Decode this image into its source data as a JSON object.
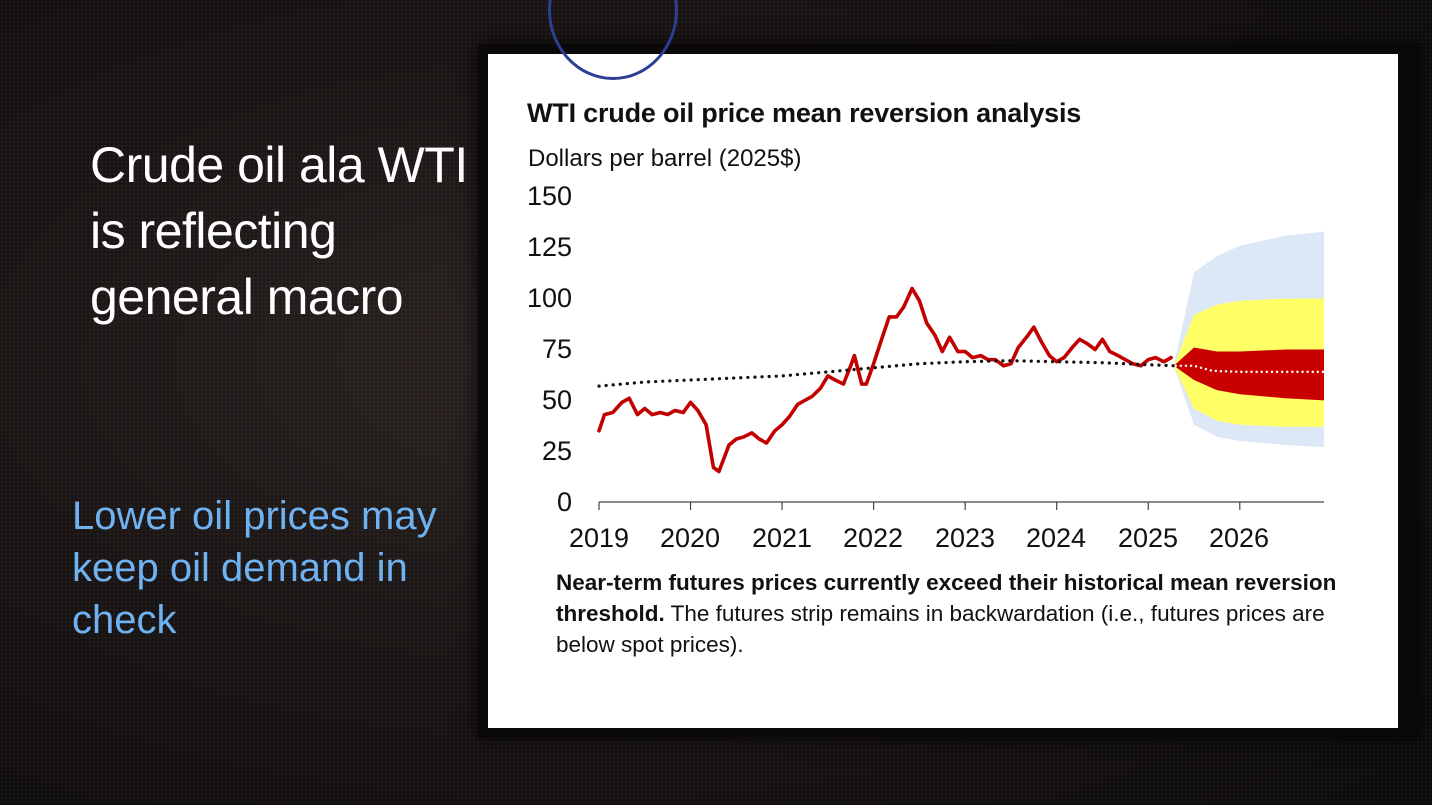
{
  "slide": {
    "headline": "Crude oil ala WTI is reflecting general macro",
    "subline": "Lower oil prices may keep oil demand in check"
  },
  "colors": {
    "price": "#c20000",
    "mean": "#111111",
    "band_outer": "#dce8f5",
    "band_mid": "#ffff66",
    "band_inner": "#c80000"
  },
  "chart_data": {
    "type": "line",
    "title": "WTI crude oil price mean reversion analysis",
    "ylabel": "Dollars per barrel (2025$)",
    "xlabel": "",
    "ylim": [
      0,
      150
    ],
    "yticks": [
      "0",
      "25",
      "50",
      "75",
      "100",
      "125",
      "150"
    ],
    "xticks": [
      "2019",
      "2020",
      "2021",
      "2022",
      "2023",
      "2024",
      "2025",
      "2026"
    ],
    "xlim": [
      2019.0,
      2026.92
    ],
    "series": [
      {
        "style": "solid-red",
        "points": [
          [
            2019.0,
            35
          ],
          [
            2019.06,
            43
          ],
          [
            2019.15,
            44
          ],
          [
            2019.25,
            49
          ],
          [
            2019.33,
            51
          ],
          [
            2019.42,
            43
          ],
          [
            2019.5,
            46
          ],
          [
            2019.58,
            43
          ],
          [
            2019.67,
            44
          ],
          [
            2019.75,
            43
          ],
          [
            2019.83,
            45
          ],
          [
            2019.92,
            44
          ],
          [
            2020.0,
            49
          ],
          [
            2020.08,
            45
          ],
          [
            2020.17,
            38
          ],
          [
            2020.25,
            17
          ],
          [
            2020.31,
            15
          ],
          [
            2020.42,
            28
          ],
          [
            2020.5,
            31
          ],
          [
            2020.58,
            32
          ],
          [
            2020.67,
            34
          ],
          [
            2020.75,
            31
          ],
          [
            2020.83,
            29
          ],
          [
            2020.92,
            35
          ],
          [
            2021.0,
            38
          ],
          [
            2021.08,
            42
          ],
          [
            2021.17,
            48
          ],
          [
            2021.25,
            50
          ],
          [
            2021.33,
            52
          ],
          [
            2021.42,
            56
          ],
          [
            2021.5,
            62
          ],
          [
            2021.58,
            60
          ],
          [
            2021.67,
            58
          ],
          [
            2021.75,
            67
          ],
          [
            2021.79,
            72
          ],
          [
            2021.87,
            58
          ],
          [
            2021.92,
            58
          ],
          [
            2022.0,
            68
          ],
          [
            2022.08,
            79
          ],
          [
            2022.17,
            91
          ],
          [
            2022.25,
            91
          ],
          [
            2022.33,
            96
          ],
          [
            2022.42,
            105
          ],
          [
            2022.5,
            99
          ],
          [
            2022.58,
            88
          ],
          [
            2022.67,
            82
          ],
          [
            2022.75,
            74
          ],
          [
            2022.83,
            81
          ],
          [
            2022.92,
            74
          ],
          [
            2023.0,
            74
          ],
          [
            2023.08,
            71
          ],
          [
            2023.17,
            72
          ],
          [
            2023.25,
            70
          ],
          [
            2023.33,
            70
          ],
          [
            2023.42,
            67
          ],
          [
            2023.5,
            68
          ],
          [
            2023.58,
            76
          ],
          [
            2023.67,
            81
          ],
          [
            2023.75,
            86
          ],
          [
            2023.83,
            79
          ],
          [
            2023.92,
            72
          ],
          [
            2024.0,
            69
          ],
          [
            2024.08,
            71
          ],
          [
            2024.17,
            76
          ],
          [
            2024.25,
            80
          ],
          [
            2024.33,
            78
          ],
          [
            2024.42,
            75
          ],
          [
            2024.5,
            80
          ],
          [
            2024.58,
            74
          ],
          [
            2024.67,
            72
          ],
          [
            2024.75,
            70
          ],
          [
            2024.83,
            68
          ],
          [
            2024.92,
            67
          ],
          [
            2025.0,
            70
          ],
          [
            2025.08,
            71
          ],
          [
            2025.17,
            69
          ],
          [
            2025.25,
            71
          ]
        ]
      },
      {
        "style": "dotted-black",
        "points": [
          [
            2019.0,
            57
          ],
          [
            2019.5,
            59
          ],
          [
            2020.0,
            60
          ],
          [
            2020.5,
            61
          ],
          [
            2021.0,
            62
          ],
          [
            2021.5,
            64
          ],
          [
            2022.0,
            66
          ],
          [
            2022.5,
            68
          ],
          [
            2023.0,
            69
          ],
          [
            2023.5,
            69.5
          ],
          [
            2024.0,
            69
          ],
          [
            2024.5,
            68.5
          ],
          [
            2025.0,
            67.5
          ],
          [
            2025.3,
            67
          ]
        ]
      },
      {
        "style": "dotted-white",
        "points": [
          [
            2025.3,
            67
          ],
          [
            2025.5,
            67
          ],
          [
            2025.7,
            64.5
          ],
          [
            2026.0,
            64
          ],
          [
            2026.5,
            64
          ],
          [
            2026.92,
            64
          ]
        ]
      }
    ],
    "bands": [
      {
        "name": "outer",
        "x": [
          2025.28,
          2025.5,
          2025.75,
          2026.0,
          2026.5,
          2026.92
        ],
        "upper": [
          67,
          113,
          121,
          126,
          131,
          133
        ],
        "lower": [
          67,
          38,
          32,
          30,
          28,
          27
        ]
      },
      {
        "name": "mid",
        "x": [
          2025.28,
          2025.5,
          2025.75,
          2026.0,
          2026.5,
          2026.92
        ],
        "upper": [
          67,
          92,
          97,
          99,
          100,
          100
        ],
        "lower": [
          67,
          46,
          40,
          38,
          37,
          37
        ]
      },
      {
        "name": "inner",
        "x": [
          2025.28,
          2025.5,
          2025.75,
          2026.0,
          2026.5,
          2026.92
        ],
        "upper": [
          67,
          76,
          74,
          74,
          75,
          75
        ],
        "lower": [
          67,
          60,
          55,
          53,
          51,
          50
        ]
      }
    ]
  },
  "caption": {
    "bold": "Near-term futures prices currently exceed their historical mean reversion threshold.",
    "normal": " The futures strip remains in backwardation (i.e., futures prices are below spot prices)."
  }
}
